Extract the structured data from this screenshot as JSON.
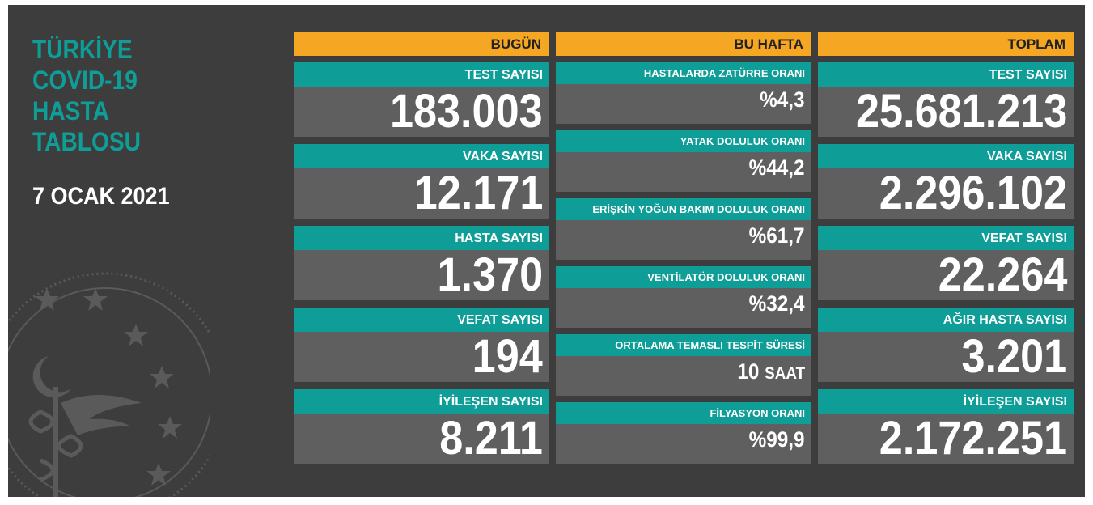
{
  "title": {
    "line1": "TÜRKİYE",
    "line2": "COVID-19",
    "line3": "HASTA",
    "line4": "TABLOSU"
  },
  "date": "7 OCAK 2021",
  "columns": {
    "today": {
      "header": "BUGÜN",
      "items": [
        {
          "label": "TEST SAYISI",
          "value": "183.003"
        },
        {
          "label": "VAKA SAYISI",
          "value": "12.171"
        },
        {
          "label": "HASTA SAYISI",
          "value": "1.370"
        },
        {
          "label": "VEFAT SAYISI",
          "value": "194"
        },
        {
          "label": "İYİLEŞEN SAYISI",
          "value": "8.211"
        }
      ]
    },
    "week": {
      "header": "BU HAFTA",
      "items": [
        {
          "label": "HASTALARDA ZATÜRRE ORANI",
          "value": "%4,3"
        },
        {
          "label": "YATAK DOLULUK ORANI",
          "value": "%44,2"
        },
        {
          "label": "ERİŞKİN YOĞUN BAKIM DOLULUK ORANI",
          "value": "%61,7"
        },
        {
          "label": "VENTİLATÖR DOLULUK ORANI",
          "value": "%32,4"
        },
        {
          "label": "ORTALAMA TEMASLI TESPİT SÜRESİ",
          "value": "10",
          "unit": "SAAT"
        },
        {
          "label": "FİLYASYON ORANI",
          "value": "%99,9"
        }
      ]
    },
    "total": {
      "header": "TOPLAM",
      "items": [
        {
          "label": "TEST SAYISI",
          "value": "25.681.213"
        },
        {
          "label": "VAKA SAYISI",
          "value": "2.296.102"
        },
        {
          "label": "VEFAT SAYISI",
          "value": "22.264"
        },
        {
          "label": "AĞIR HASTA SAYISI",
          "value": "3.201"
        },
        {
          "label": "İYİLEŞEN SAYISI",
          "value": "2.172.251"
        }
      ]
    }
  },
  "colors": {
    "board": "#3d3d3d",
    "teal": "#0f9d98",
    "orange": "#f5a623",
    "card": "#5f5f5f"
  },
  "icons": [
    "ministry-emblem-icon"
  ]
}
